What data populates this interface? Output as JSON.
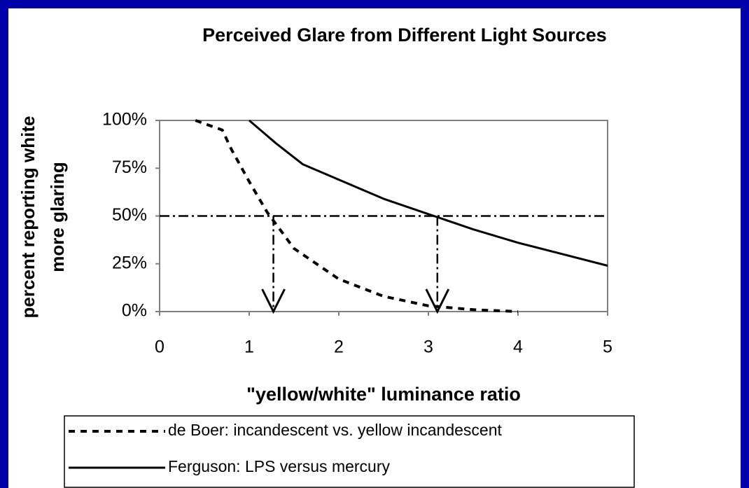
{
  "chart_data": {
    "type": "line",
    "title": "Perceived Glare from Different Light Sources",
    "xlabel": "\"yellow/white\" luminance ratio",
    "ylabel": [
      "percent reporting white",
      "more glaring"
    ],
    "xlim": [
      0,
      5
    ],
    "xticks": [
      0,
      1,
      2,
      3,
      4,
      5
    ],
    "ylim": [
      0,
      100
    ],
    "yticks": [
      {
        "value": 0,
        "label": "0%"
      },
      {
        "value": 25,
        "label": "25%"
      },
      {
        "value": 50,
        "label": "50%"
      },
      {
        "value": 75,
        "label": "75%"
      },
      {
        "value": 100,
        "label": "100%"
      }
    ],
    "reference_y": 50,
    "arrows_x": [
      1.27,
      3.1
    ],
    "series": [
      {
        "name": "de Boer: incandescent vs. yellow incandescent",
        "color": "#000000",
        "style": "dashed",
        "x": [
          0.4,
          0.7,
          0.8,
          1.0,
          1.2,
          1.5,
          2.0,
          2.5,
          3.0,
          3.5,
          4.0
        ],
        "values": [
          100,
          95,
          85,
          68,
          52,
          33,
          17,
          8,
          3,
          1,
          0
        ]
      },
      {
        "name": "Ferguson: LPS versus mercury",
        "color": "#000000",
        "style": "solid",
        "x": [
          1.0,
          1.3,
          1.6,
          2.0,
          2.5,
          3.0,
          3.5,
          4.0,
          4.5,
          5.0
        ],
        "values": [
          100,
          88,
          77,
          69,
          59,
          51,
          43,
          36,
          30,
          24
        ]
      }
    ]
  }
}
